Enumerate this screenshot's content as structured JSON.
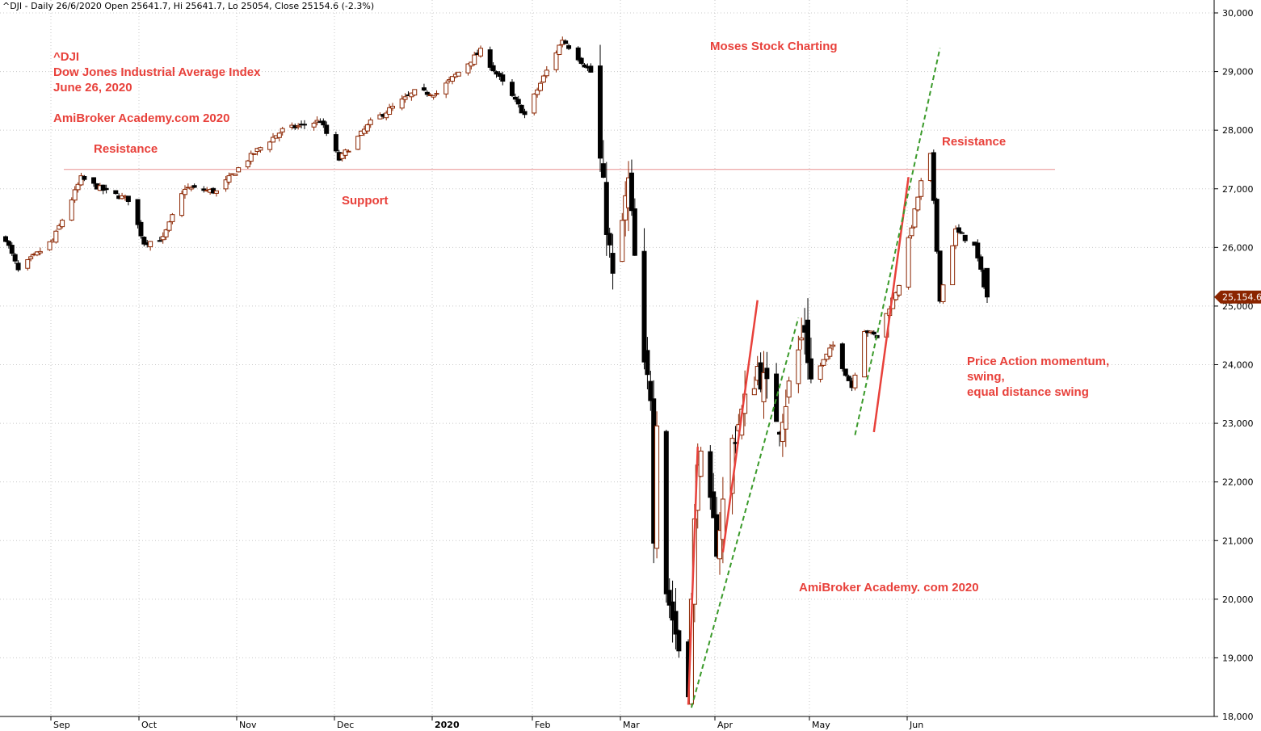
{
  "header": "^DJI - Daily 26/6/2020 Open 25641.7, Hi 25641.7, Lo 25054, Close 25154.6 (-2.3%)",
  "annotations": {
    "symbol": "^DJI",
    "index_name": "Dow Jones Industrial Average Index",
    "date": "June 26, 2020",
    "site": "AmiBroker Academy.com  2020",
    "resistance_left": "Resistance",
    "support": "Support",
    "moses": "Moses Stock Charting",
    "resistance_right": "Resistance",
    "price_action_1": "Price Action momentum,",
    "price_action_2": "swing,",
    "price_action_3": "equal distance swing",
    "site_bottom": "AmiBroker Academy. com 2020"
  },
  "colors": {
    "up_candle": "#8b2500",
    "down_candle": "#000000",
    "annotation": "#e8413b",
    "trendline_red": "#e8413b",
    "trendline_green": "#3a9a2a",
    "grid": "#c8c8c8",
    "last_price_badge": "#8b2500"
  },
  "chart_data": {
    "type": "candlestick",
    "ylim": [
      18000,
      30000
    ],
    "y_ticks": [
      "18,000",
      "19,000",
      "20,000",
      "21,000",
      "22,000",
      "23,000",
      "24,000",
      "25,000",
      "26,000",
      "27,000",
      "28,000",
      "29,000",
      "30,000"
    ],
    "x_ticks": [
      "Sep",
      "Oct",
      "Nov",
      "Dec",
      "2020",
      "Feb",
      "Mar",
      "Apr",
      "May",
      "Jun"
    ],
    "last_price": "25,154.6",
    "resistance_level": 27330,
    "grid": true,
    "anchors": [
      {
        "date": "2019-08-19",
        "close": 26150
      },
      {
        "date": "2019-08-23",
        "close": 25600
      },
      {
        "date": "2019-08-27",
        "close": 25800
      },
      {
        "date": "2019-09-03",
        "close": 26120
      },
      {
        "date": "2019-09-12",
        "close": 27180
      },
      {
        "date": "2019-09-20",
        "close": 26950
      },
      {
        "date": "2019-09-27",
        "close": 26820
      },
      {
        "date": "2019-10-02",
        "close": 26080
      },
      {
        "date": "2019-10-08",
        "close": 26150
      },
      {
        "date": "2019-10-15",
        "close": 27020
      },
      {
        "date": "2019-10-25",
        "close": 26950
      },
      {
        "date": "2019-11-01",
        "close": 27350
      },
      {
        "date": "2019-11-07",
        "close": 27660
      },
      {
        "date": "2019-11-15",
        "close": 28000
      },
      {
        "date": "2019-11-27",
        "close": 28160
      },
      {
        "date": "2019-12-03",
        "close": 27500
      },
      {
        "date": "2019-12-13",
        "close": 28130
      },
      {
        "date": "2019-12-27",
        "close": 28650
      },
      {
        "date": "2020-01-03",
        "close": 28630
      },
      {
        "date": "2020-01-17",
        "close": 29350
      },
      {
        "date": "2020-01-31",
        "close": 28260
      },
      {
        "date": "2020-02-12",
        "close": 29550
      },
      {
        "date": "2020-02-21",
        "close": 28990
      },
      {
        "date": "2020-02-28",
        "close": 25410
      },
      {
        "date": "2020-03-04",
        "close": 27090
      },
      {
        "date": "2020-03-09",
        "close": 23850
      },
      {
        "date": "2020-03-11",
        "close": 23550
      },
      {
        "date": "2020-03-12",
        "close": 21200
      },
      {
        "date": "2020-03-13",
        "close": 23180
      },
      {
        "date": "2020-03-16",
        "close": 20190
      },
      {
        "date": "2020-03-20",
        "close": 19170
      },
      {
        "date": "2020-03-23",
        "close": 18590
      },
      {
        "date": "2020-03-26",
        "close": 22550
      },
      {
        "date": "2020-04-01",
        "close": 20940
      },
      {
        "date": "2020-04-06",
        "close": 22680
      },
      {
        "date": "2020-04-14",
        "close": 23950
      },
      {
        "date": "2020-04-21",
        "close": 23020
      },
      {
        "date": "2020-04-29",
        "close": 24630
      },
      {
        "date": "2020-05-01",
        "close": 23720
      },
      {
        "date": "2020-05-08",
        "close": 24330
      },
      {
        "date": "2020-05-14",
        "close": 23620
      },
      {
        "date": "2020-05-18",
        "close": 24600
      },
      {
        "date": "2020-05-22",
        "close": 24470
      },
      {
        "date": "2020-05-29",
        "close": 25380
      },
      {
        "date": "2020-06-05",
        "close": 27110
      },
      {
        "date": "2020-06-08",
        "close": 27570
      },
      {
        "date": "2020-06-11",
        "close": 25130
      },
      {
        "date": "2020-06-16",
        "close": 26290
      },
      {
        "date": "2020-06-22",
        "close": 26020
      },
      {
        "date": "2020-06-26",
        "close": 25150
      }
    ],
    "trendlines": [
      {
        "color": "red",
        "from": {
          "date": "2020-03-23",
          "value": 18200
        },
        "to": {
          "date": "2020-03-26",
          "value": 22600
        }
      },
      {
        "color": "red",
        "from": {
          "date": "2020-04-03",
          "value": 20800
        },
        "to": {
          "date": "2020-04-14",
          "value": 25100
        }
      },
      {
        "color": "red",
        "from": {
          "date": "2020-05-21",
          "value": 22850
        },
        "to": {
          "date": "2020-06-01",
          "value": 27200
        }
      },
      {
        "color": "green",
        "from": {
          "date": "2020-03-24",
          "value": 18150
        },
        "to": {
          "date": "2020-04-27",
          "value": 24800
        }
      },
      {
        "color": "green",
        "from": {
          "date": "2020-05-15",
          "value": 22800
        },
        "to": {
          "date": "2020-06-11",
          "value": 29400
        }
      }
    ]
  }
}
